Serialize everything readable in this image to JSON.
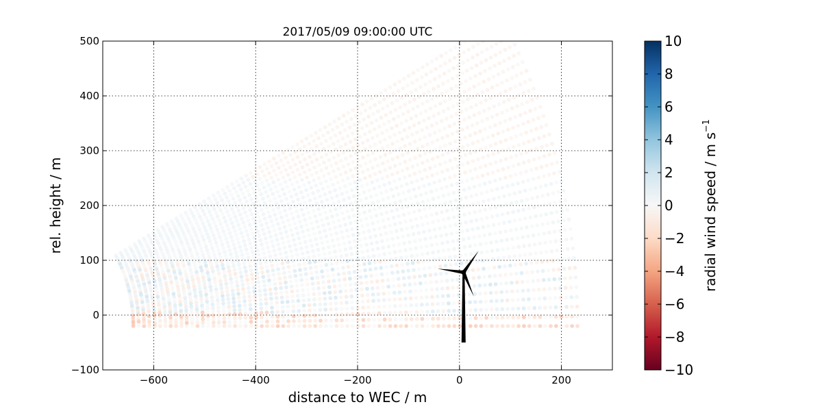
{
  "chart_data": {
    "type": "scatter",
    "title": "2017/05/09 09:00:00 UTC",
    "xlabel": "distance to WEC / m",
    "ylabel": "rel. height / m",
    "xlim": [
      -700,
      300
    ],
    "ylim": [
      -100,
      500
    ],
    "xticks": [
      -600,
      -400,
      -200,
      0,
      200
    ],
    "yticks": [
      -100,
      0,
      100,
      200,
      300,
      400,
      500
    ],
    "grid": true,
    "colormap": "RdBu",
    "colorbar": {
      "label": "radial wind speed / m s",
      "label_exponent": "−1",
      "range": [
        -10,
        10
      ],
      "ticks": [
        10,
        8,
        6,
        4,
        2,
        0,
        -2,
        -4,
        -6,
        -8,
        -10
      ],
      "tick_labels": [
        "10",
        "8",
        "6",
        "4",
        "2",
        "0",
        "−2",
        "−4",
        "−6",
        "−8",
        "−10"
      ],
      "color_max": "#053061",
      "color_zero": "#f7f7f7",
      "color_min": "#67001f"
    },
    "scan": {
      "origin": [
        -900,
        -20
      ],
      "elevation_deg": [
        0,
        30
      ],
      "range_m": [
        260,
        1140
      ],
      "wind_field": [
        {
          "height_range": [
            -25,
            5
          ],
          "radial_speed": -1.6
        },
        {
          "height_range": [
            5,
            100
          ],
          "radial_speed": 0.4
        },
        {
          "height_range": [
            100,
            250
          ],
          "radial_speed": 0.6
        },
        {
          "height_range": [
            250,
            500
          ],
          "radial_speed": -0.7
        }
      ]
    },
    "turbine": {
      "x": 8,
      "tower_base": -50,
      "hub_height": 78,
      "rotor_radius": 48
    },
    "tick_labels_x": [
      "−600",
      "−400",
      "−200",
      "0",
      "200"
    ],
    "tick_labels_y": [
      "−100",
      "0",
      "100",
      "200",
      "300",
      "400",
      "500"
    ]
  }
}
